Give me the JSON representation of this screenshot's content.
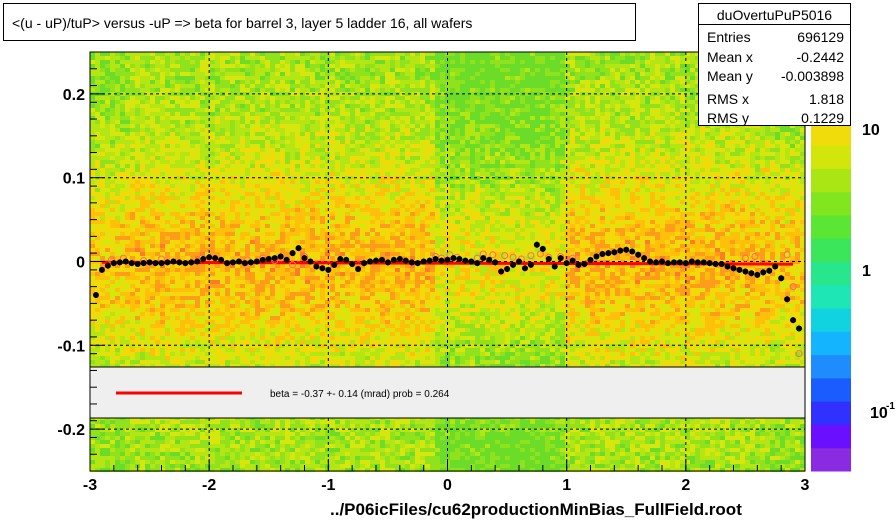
{
  "title": "<(u - uP)/tuP> versus  -uP => beta for barrel 3, layer 5 ladder 16, all wafers",
  "stats": {
    "name": "duOvertuPuP5016",
    "rows": [
      {
        "label": "Entries",
        "value": "696129"
      },
      {
        "label": "Mean x",
        "value": "-0.2442"
      },
      {
        "label": "Mean y",
        "value": "-0.003898"
      },
      {
        "label": "RMS x",
        "value": "1.818"
      },
      {
        "label": "RMS y",
        "value": "0.1229"
      }
    ]
  },
  "fit_legend": "beta =   -0.37 +-  0.14 (mrad) prob = 0.264",
  "colors": {
    "fit_line": "#ff0000",
    "profile_markers": "#000000",
    "open_markers": "#ff6666",
    "grid": "#000000"
  },
  "chart_data": {
    "type": "heatmap",
    "title": "<(u - uP)/tuP> versus  -uP => beta for barrel 3, layer 5 ladder 16, all wafers",
    "xlabel": "../P06icFiles/cu62productionMinBias_FullField.root",
    "ylabel": "",
    "xlim": [
      -3,
      3
    ],
    "ylim": [
      -0.25,
      0.25
    ],
    "x_ticks": [
      -3,
      -2,
      -1,
      0,
      1,
      2,
      3
    ],
    "y_ticks": [
      -0.2,
      -0.1,
      0,
      0.1,
      0.2
    ],
    "x_tick_labels": [
      "-3",
      "-2",
      "-1",
      "0",
      "1",
      "2",
      "3"
    ],
    "y_tick_labels": [
      "-0.2",
      "-0.1",
      "0",
      "0.1",
      "0.2"
    ],
    "grid": true,
    "colorbar": {
      "scale": "log",
      "tick_labels": [
        "10",
        "1",
        "10"
      ],
      "exponent_label": "-1"
    },
    "fit": {
      "type": "line",
      "slope": -0.00037,
      "intercept": -0.002
    },
    "profile": {
      "x": [
        -2.95,
        -2.9,
        -2.85,
        -2.8,
        -2.75,
        -2.7,
        -2.65,
        -2.6,
        -2.55,
        -2.5,
        -2.45,
        -2.4,
        -2.35,
        -2.3,
        -2.25,
        -2.2,
        -2.15,
        -2.1,
        -2.05,
        -2.0,
        -1.95,
        -1.9,
        -1.85,
        -1.8,
        -1.75,
        -1.7,
        -1.65,
        -1.6,
        -1.55,
        -1.5,
        -1.45,
        -1.4,
        -1.35,
        -1.3,
        -1.25,
        -1.2,
        -1.15,
        -1.1,
        -1.05,
        -1.0,
        -0.95,
        -0.9,
        -0.85,
        -0.8,
        -0.75,
        -0.7,
        -0.65,
        -0.6,
        -0.55,
        -0.5,
        -0.45,
        -0.4,
        -0.35,
        -0.3,
        -0.25,
        -0.2,
        -0.15,
        -0.1,
        -0.05,
        0.0,
        0.05,
        0.1,
        0.15,
        0.2,
        0.25,
        0.3,
        0.35,
        0.4,
        0.45,
        0.5,
        0.55,
        0.6,
        0.65,
        0.7,
        0.75,
        0.8,
        0.85,
        0.9,
        0.95,
        1.0,
        1.05,
        1.1,
        1.15,
        1.2,
        1.25,
        1.3,
        1.35,
        1.4,
        1.45,
        1.5,
        1.55,
        1.6,
        1.65,
        1.7,
        1.75,
        1.8,
        1.85,
        1.9,
        1.95,
        2.0,
        2.05,
        2.1,
        2.15,
        2.2,
        2.25,
        2.3,
        2.35,
        2.4,
        2.45,
        2.5,
        2.55,
        2.6,
        2.65,
        2.7,
        2.75,
        2.8,
        2.85,
        2.9,
        2.95
      ],
      "y": [
        -0.04,
        -0.01,
        -0.005,
        -0.002,
        -0.001,
        0.0,
        -0.002,
        -0.003,
        -0.002,
        -0.001,
        -0.002,
        -0.002,
        -0.001,
        0.0,
        -0.001,
        -0.002,
        -0.001,
        0.0,
        0.003,
        0.005,
        0.004,
        0.002,
        -0.002,
        -0.001,
        0.0,
        -0.002,
        -0.001,
        0.0,
        0.002,
        0.003,
        0.004,
        0.006,
        0.002,
        0.01,
        0.016,
        0.004,
        0.0,
        -0.006,
        -0.008,
        -0.01,
        -0.004,
        0.003,
        0.002,
        -0.003,
        -0.009,
        -0.002,
        0.0,
        0.001,
        0.002,
        -0.001,
        0.002,
        0.003,
        0.001,
        -0.001,
        -0.002,
        0.0,
        0.001,
        0.003,
        0.001,
        0.002,
        0.004,
        0.003,
        0.001,
        0.0,
        -0.002,
        0.004,
        0.002,
        -0.001,
        -0.012,
        -0.009,
        -0.004,
        0.0,
        -0.008,
        -0.004,
        0.02,
        0.015,
        0.003,
        -0.006,
        0.004,
        -0.002,
        0.001,
        -0.004,
        -0.003,
        0.002,
        0.006,
        0.009,
        0.01,
        0.011,
        0.013,
        0.014,
        0.012,
        0.008,
        0.004,
        0.0,
        -0.001,
        0.0,
        -0.002,
        -0.001,
        -0.001,
        -0.002,
        0.0,
        -0.001,
        -0.001,
        -0.002,
        -0.003,
        -0.003,
        -0.006,
        -0.008,
        -0.01,
        -0.012,
        -0.014,
        -0.016,
        -0.013,
        -0.011,
        -0.006,
        -0.02,
        -0.045,
        -0.07,
        -0.08
      ]
    },
    "open_markers": {
      "x": [
        -2.82,
        -2.72,
        -2.55,
        -2.4,
        -1.68,
        -1.55,
        -1.45,
        -1.3,
        -1.2,
        -0.1,
        -0.05,
        0.02,
        0.08,
        0.25,
        0.3,
        0.38,
        0.48,
        0.55,
        0.62,
        0.7,
        0.78,
        0.85,
        0.95,
        1.05,
        2.5,
        2.58,
        2.85,
        2.9,
        2.95
      ],
      "y": [
        0.002,
        0.004,
        0.001,
        0.003,
        0.002,
        0.004,
        0.001,
        -0.004,
        0.006,
        0.006,
        0.004,
        0.008,
        0.005,
        0.004,
        0.009,
        0.008,
        0.007,
        0.005,
        0.003,
        0.007,
        0.009,
        0.005,
        0.006,
        0.004,
        0.004,
        0.006,
        0.008,
        -0.03,
        -0.11
      ]
    }
  }
}
